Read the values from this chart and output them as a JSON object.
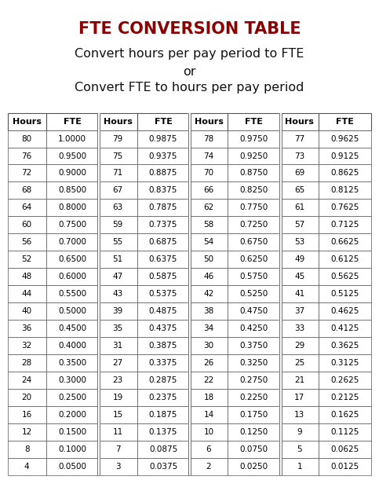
{
  "title": "FTE CONVERSION TABLE",
  "subtitle_line1": "Convert hours per pay period to FTE",
  "subtitle_line2": "or",
  "subtitle_line3": "Convert FTE to hours per pay period",
  "title_color": "#8B0000",
  "title_fontsize": 15,
  "subtitle_fontsize": 11.5,
  "bg_color": "#ffffff",
  "col_headers": [
    "Hours",
    "FTE",
    "Hours",
    "FTE",
    "Hours",
    "FTE",
    "Hours",
    "FTE"
  ],
  "rows": [
    [
      "80",
      "1.0000",
      "79",
      "0.9875",
      "78",
      "0.9750",
      "77",
      "0.9625"
    ],
    [
      "76",
      "0.9500",
      "75",
      "0.9375",
      "74",
      "0.9250",
      "73",
      "0.9125"
    ],
    [
      "72",
      "0.9000",
      "71",
      "0.8875",
      "70",
      "0.8750",
      "69",
      "0.8625"
    ],
    [
      "68",
      "0.8500",
      "67",
      "0.8375",
      "66",
      "0.8250",
      "65",
      "0.8125"
    ],
    [
      "64",
      "0.8000",
      "63",
      "0.7875",
      "62",
      "0.7750",
      "61",
      "0.7625"
    ],
    [
      "60",
      "0.7500",
      "59",
      "0.7375",
      "58",
      "0.7250",
      "57",
      "0.7125"
    ],
    [
      "56",
      "0.7000",
      "55",
      "0.6875",
      "54",
      "0.6750",
      "53",
      "0.6625"
    ],
    [
      "52",
      "0.6500",
      "51",
      "0.6375",
      "50",
      "0.6250",
      "49",
      "0.6125"
    ],
    [
      "48",
      "0.6000",
      "47",
      "0.5875",
      "46",
      "0.5750",
      "45",
      "0.5625"
    ],
    [
      "44",
      "0.5500",
      "43",
      "0.5375",
      "42",
      "0.5250",
      "41",
      "0.5125"
    ],
    [
      "40",
      "0.5000",
      "39",
      "0.4875",
      "38",
      "0.4750",
      "37",
      "0.4625"
    ],
    [
      "36",
      "0.4500",
      "35",
      "0.4375",
      "34",
      "0.4250",
      "33",
      "0.4125"
    ],
    [
      "32",
      "0.4000",
      "31",
      "0.3875",
      "30",
      "0.3750",
      "29",
      "0.3625"
    ],
    [
      "28",
      "0.3500",
      "27",
      "0.3375",
      "26",
      "0.3250",
      "25",
      "0.3125"
    ],
    [
      "24",
      "0.3000",
      "23",
      "0.2875",
      "22",
      "0.2750",
      "21",
      "0.2625"
    ],
    [
      "20",
      "0.2500",
      "19",
      "0.2375",
      "18",
      "0.2250",
      "17",
      "0.2125"
    ],
    [
      "16",
      "0.2000",
      "15",
      "0.1875",
      "14",
      "0.1750",
      "13",
      "0.1625"
    ],
    [
      "12",
      "0.1500",
      "11",
      "0.1375",
      "10",
      "0.1250",
      "9",
      "0.1125"
    ],
    [
      "8",
      "0.1000",
      "7",
      "0.0875",
      "6",
      "0.0750",
      "5",
      "0.0625"
    ],
    [
      "4",
      "0.0500",
      "3",
      "0.0375",
      "2",
      "0.0250",
      "1",
      "0.0125"
    ]
  ],
  "cell_font_size": 7.5,
  "header_font_size": 8.0,
  "edge_color": "#555555",
  "double_line_cols": [
    2,
    4,
    6
  ]
}
